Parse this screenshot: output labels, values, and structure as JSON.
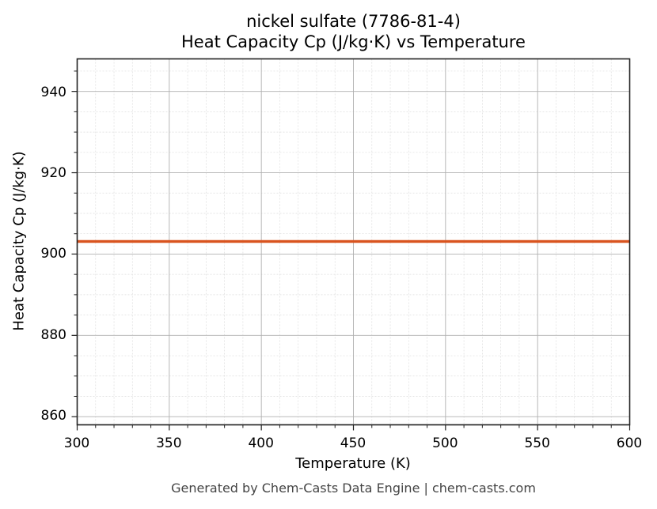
{
  "chart_data": {
    "type": "line",
    "title": "nickel sulfate (7786-81-4)",
    "subtitle": "Heat Capacity Cp (J/kg·K) vs Temperature",
    "xlabel": "Temperature (K)",
    "ylabel": "Heat Capacity Cp (J/kg·K)",
    "xlim": [
      300,
      600
    ],
    "ylim": [
      858,
      948
    ],
    "xticks": [
      300,
      350,
      400,
      450,
      500,
      550,
      600
    ],
    "yticks": [
      860,
      880,
      900,
      920,
      940
    ],
    "grid": true,
    "legend": null,
    "series": [
      {
        "name": "Cp",
        "color": "#d9541f",
        "x": [
          300,
          600
        ],
        "values": [
          903.1,
          903.1
        ]
      }
    ]
  },
  "labels": {
    "title": "nickel sulfate (7786-81-4)",
    "subtitle": "Heat Capacity Cp (J/kg·K) vs Temperature",
    "xlabel": "Temperature (K)",
    "ylabel": "Heat Capacity Cp (J/kg·K)",
    "footer": "Generated by Chem-Casts Data Engine | chem-casts.com"
  },
  "axis": {
    "x_ticks": [
      "300",
      "350",
      "400",
      "450",
      "500",
      "550",
      "600"
    ],
    "y_ticks": [
      "940",
      "920",
      "900",
      "880",
      "860"
    ]
  }
}
